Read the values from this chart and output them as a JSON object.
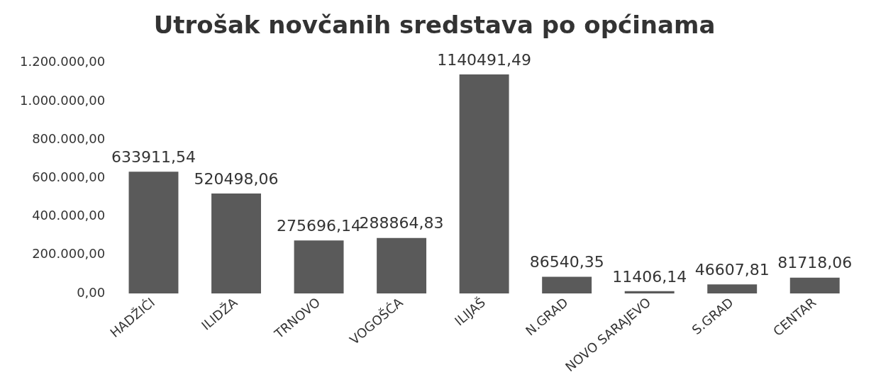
{
  "chart_data": {
    "type": "bar",
    "title": "Utrošak novčanih sredstava po općinama",
    "categories": [
      "HADŽIĆI",
      "ILIDŽA",
      "TRNOVO",
      "VOGOŠĆA",
      "ILIJAŠ",
      "N.GRAD",
      "NOVO SARAJEVO",
      "S.GRAD",
      "CENTAR"
    ],
    "values": [
      633911.54,
      520498.06,
      275696.14,
      288864.83,
      1140491.49,
      86540.35,
      11406.14,
      46607.81,
      81718.06
    ],
    "value_labels": [
      "633911,54",
      "520498,06",
      "275696,14",
      "288864,83",
      "1140491,49",
      "86540,35",
      "11406,14",
      "46607,81",
      "81718,06"
    ],
    "color": "#5a5a5a",
    "ylim": [
      0,
      1200000
    ],
    "yticks": [
      {
        "value": 0,
        "label": "0,00"
      },
      {
        "value": 200000,
        "label": "200.000,00"
      },
      {
        "value": 400000,
        "label": "400.000,00"
      },
      {
        "value": 600000,
        "label": "600.000,00"
      },
      {
        "value": 800000,
        "label": "800.000,00"
      },
      {
        "value": 1000000,
        "label": "1.000.000,00"
      },
      {
        "value": 1200000,
        "label": "1.200.000,00"
      }
    ],
    "grid": false,
    "legend": false
  }
}
